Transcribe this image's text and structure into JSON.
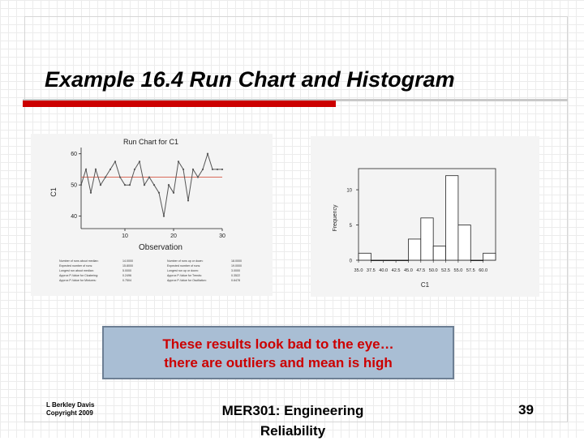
{
  "slide": {
    "title": "Example 16.4 Run Chart and Histogram",
    "accent_color": "#cc0000",
    "callout": {
      "line1": "These results look bad to the eye…",
      "line2": "there are outliers and mean is high",
      "background": "#a9bed4",
      "text_color": "#cc0000"
    },
    "footer": {
      "author": "L Berkley Davis",
      "copyright": "Copyright 2009",
      "course_line1": "MER301: Engineering",
      "course_line2": "Reliability",
      "page_number": "39"
    }
  },
  "chart_data": [
    {
      "type": "line",
      "title": "Run Chart for C1",
      "xlabel": "Observation",
      "ylabel": "C1",
      "x_ticks": [
        "10",
        "20",
        "30"
      ],
      "y_ticks": [
        "40",
        "50",
        "60"
      ],
      "xlim": [
        1,
        30
      ],
      "ylim": [
        36,
        62
      ],
      "center_line": 52.5,
      "center_line_color": "#d96b5a",
      "series": [
        {
          "x": [
            1,
            2,
            3,
            4,
            5,
            6,
            7,
            8,
            9,
            10,
            11,
            12,
            13,
            14,
            15,
            16,
            17,
            18,
            19,
            20,
            21,
            22,
            23,
            24,
            25,
            26,
            27,
            28,
            29,
            30
          ],
          "values": [
            50,
            55,
            47.5,
            55,
            50,
            52.5,
            55,
            57.5,
            52.5,
            50,
            50,
            55,
            57.5,
            50,
            52.5,
            50,
            47.5,
            40,
            50,
            47.5,
            57.5,
            55,
            45,
            55,
            52.5,
            55,
            60,
            55,
            55,
            55
          ],
          "color": "#555555"
        }
      ],
      "stats_table": {
        "left_labels": [
          "Number of runs about median:",
          "Expected number of runs:",
          "Longest run about median:",
          "Approx P-Value for Clustering:",
          "Approx P-Value for Mixtures:"
        ],
        "left_values": [
          "14.0000",
          "15.8000",
          "5.0000",
          "0.2496",
          "0.7504"
        ],
        "right_labels": [
          "Number of runs up or down:",
          "Expected number of runs:",
          "Longest run up or down:",
          "Approx P-Value for Trends:",
          "Approx P-Value for Oscillation:"
        ],
        "right_values": [
          "18.0000",
          "19.0000",
          "3.0000",
          "0.3522",
          "0.6478"
        ]
      }
    },
    {
      "type": "bar",
      "title": "",
      "xlabel": "C1",
      "ylabel": "Frequency",
      "categories": [
        "35.0",
        "37.5",
        "40.0",
        "42.5",
        "45.0",
        "47.5",
        "50.0",
        "52.5",
        "55.0",
        "57.5",
        "60.0"
      ],
      "bin_edges": [
        35.0,
        37.5,
        40.0,
        42.5,
        45.0,
        47.5,
        50.0,
        52.5,
        55.0,
        57.5,
        60.0
      ],
      "bars": [
        {
          "start": 35.0,
          "end": 37.5,
          "value": 1
        },
        {
          "start": 37.5,
          "end": 40.0,
          "value": 0
        },
        {
          "start": 40.0,
          "end": 42.5,
          "value": 0
        },
        {
          "start": 42.5,
          "end": 45.0,
          "value": 0
        },
        {
          "start": 45.0,
          "end": 47.5,
          "value": 3
        },
        {
          "start": 47.5,
          "end": 50.0,
          "value": 6
        },
        {
          "start": 50.0,
          "end": 52.5,
          "value": 2
        },
        {
          "start": 52.5,
          "end": 55.0,
          "value": 12
        },
        {
          "start": 55.0,
          "end": 57.5,
          "value": 5
        },
        {
          "start": 57.5,
          "end": 60.0,
          "value": 0
        },
        {
          "start": 60.0,
          "end": 62.5,
          "value": 1
        }
      ],
      "y_ticks": [
        "0",
        "5",
        "10"
      ],
      "ylim": [
        0,
        13
      ]
    }
  ]
}
